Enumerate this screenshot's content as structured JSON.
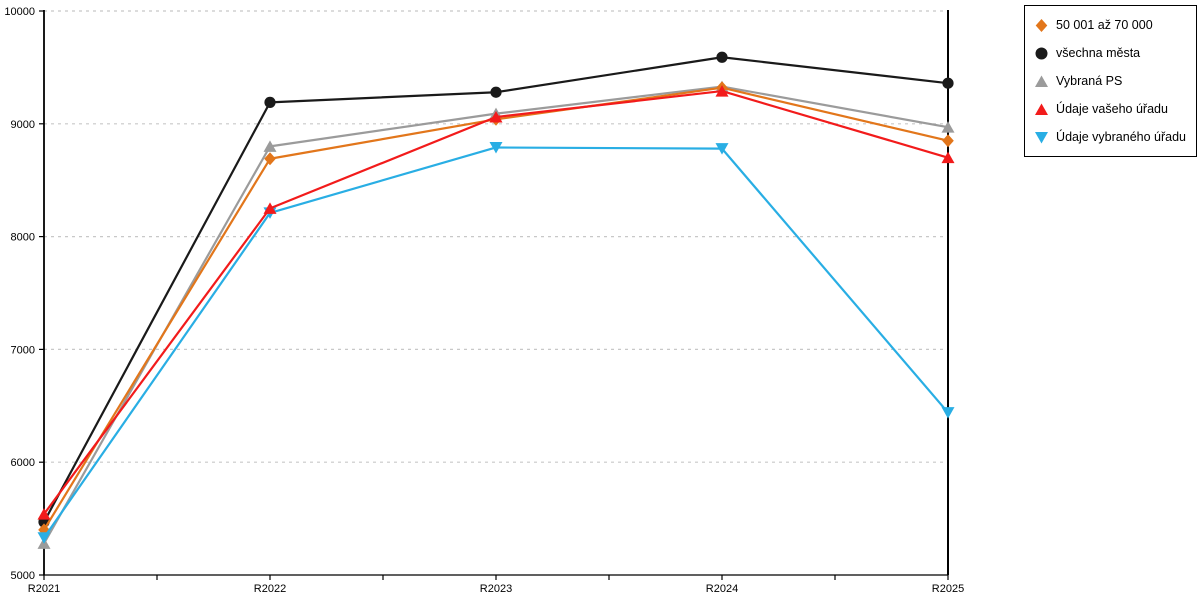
{
  "chart_data": {
    "type": "line",
    "title": "",
    "xlabel": "",
    "ylabel": "",
    "categories": [
      "R2021",
      "R2022",
      "R2023",
      "R2024",
      "R2025"
    ],
    "series": [
      {
        "name": "50 001 až 70 000",
        "marker": "diamond",
        "color": "#E2761B",
        "values": [
          5400,
          8690,
          9040,
          9320,
          8850
        ]
      },
      {
        "name": "všechna města",
        "marker": "circle",
        "color": "#1A1A1A",
        "values": [
          5470,
          9190,
          9280,
          9590,
          9360
        ]
      },
      {
        "name": "Vybraná PS",
        "marker": "triangle-up",
        "color": "#9B9B9B",
        "values": [
          5280,
          8800,
          9090,
          9330,
          8970
        ]
      },
      {
        "name": "Údaje vašeho úřadu",
        "marker": "triangle-up",
        "color": "#F21B1B",
        "values": [
          5540,
          8250,
          9060,
          9290,
          8700
        ]
      },
      {
        "name": "Údaje vybraného úřadu",
        "marker": "triangle-down",
        "color": "#29AEE4",
        "values": [
          5330,
          8210,
          8790,
          8780,
          6440
        ]
      }
    ],
    "ylim": [
      5000,
      10000
    ],
    "yticks": [
      5000,
      6000,
      7000,
      8000,
      9000,
      10000
    ],
    "grid": "horizontal-dashed",
    "legend_position": "top-right"
  },
  "colors": {
    "grid": "#C8C8C8",
    "axis": "#000000",
    "background": "#FFFFFF",
    "legend_border": "#000000"
  }
}
